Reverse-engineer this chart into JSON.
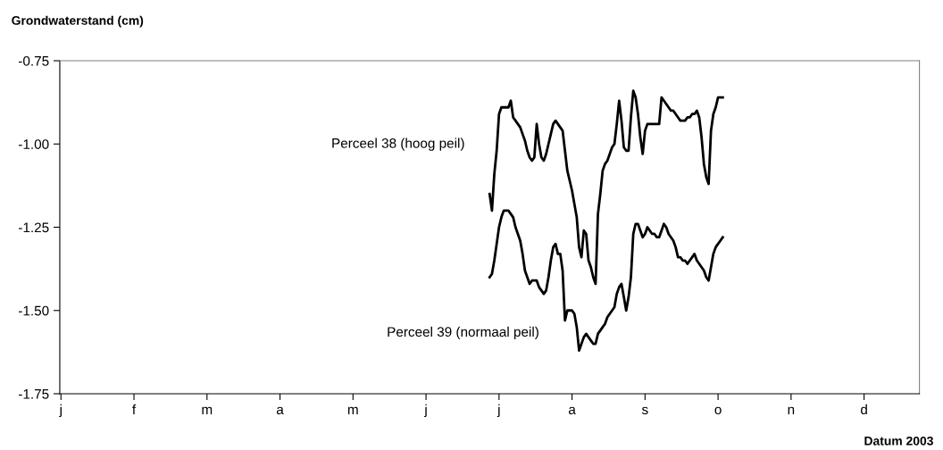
{
  "chart_data": {
    "type": "line",
    "ylabel": "Grondwaterstand (cm)",
    "xlabel": "Datum 2003",
    "categories": [
      "j",
      null,
      null,
      null,
      null,
      null,
      null,
      null,
      null,
      null,
      null,
      null,
      null,
      null,
      null,
      null,
      null,
      null,
      null,
      null,
      null,
      null,
      null,
      null,
      null,
      null,
      null,
      null,
      null,
      null,
      null,
      "f",
      null,
      null,
      null,
      null,
      null,
      null,
      null,
      null,
      null,
      null,
      null,
      null,
      null,
      null,
      null,
      null,
      null,
      null,
      null,
      null,
      null,
      null,
      null,
      null,
      null,
      null,
      null,
      null,
      null,
      null,
      "m",
      null,
      null,
      null,
      null,
      null,
      null,
      null,
      null,
      null,
      null,
      null,
      null,
      null,
      null,
      null,
      null,
      null,
      null,
      null,
      null,
      null,
      null,
      null,
      null,
      null,
      null,
      null,
      null,
      null,
      null,
      "a",
      null,
      null,
      null,
      null,
      null,
      null,
      null,
      null,
      null,
      null,
      null,
      null,
      null,
      null,
      null,
      null,
      null,
      null,
      null,
      null,
      null,
      null,
      null,
      null,
      null,
      null,
      null,
      null,
      null,
      null,
      "m",
      null,
      null,
      null,
      null,
      null,
      null,
      null,
      null,
      null,
      null,
      null,
      null,
      null,
      null,
      null,
      null,
      null,
      null,
      null,
      null,
      null,
      null,
      null,
      null,
      null,
      null,
      null,
      null,
      null,
      null,
      "j",
      null,
      null,
      null,
      null,
      null,
      null,
      null,
      null,
      null,
      null,
      null,
      null,
      null,
      null,
      null,
      null,
      null,
      null,
      null,
      null,
      null,
      null,
      null,
      null,
      null,
      null,
      null,
      null,
      null,
      null,
      "j",
      null,
      null,
      null,
      null,
      null,
      null,
      null,
      null,
      null,
      null,
      null,
      null,
      null,
      null,
      null,
      null,
      null,
      null,
      null,
      null,
      null,
      null,
      null,
      null,
      null,
      null,
      null,
      null,
      null,
      null,
      "a",
      null,
      null,
      null,
      null,
      null,
      null,
      null,
      null,
      null,
      null,
      null,
      null,
      null,
      null,
      null,
      null,
      null,
      null,
      null,
      null,
      null,
      null,
      null,
      null,
      null,
      null,
      null,
      null,
      null,
      null,
      "s",
      null,
      null,
      null,
      null,
      null,
      null,
      null,
      null,
      null,
      null,
      null,
      null,
      null,
      null,
      null,
      null,
      null,
      null,
      null,
      null,
      null,
      null,
      null,
      null,
      null,
      null,
      null,
      null,
      null,
      null,
      "o",
      null,
      null,
      null,
      null,
      null,
      null,
      null,
      null,
      null,
      null,
      null,
      null,
      null,
      null,
      null,
      null,
      null,
      null,
      null,
      null,
      null,
      null,
      null,
      null,
      null,
      null,
      null,
      null,
      null,
      null,
      "n",
      null,
      null,
      null,
      null,
      null,
      null,
      null,
      null,
      null,
      null,
      null,
      null,
      null,
      null,
      null,
      null,
      null,
      null,
      null,
      null,
      null,
      null,
      null,
      null,
      null,
      null,
      null,
      null,
      null,
      null,
      "d",
      null,
      null,
      null,
      null,
      null,
      null,
      null,
      null,
      null,
      null,
      null,
      null,
      null,
      null,
      null,
      null,
      null,
      null,
      null,
      null,
      null,
      null,
      null
    ],
    "ylim": [
      -1.75,
      -0.75
    ],
    "yticks": [
      {
        "value": -1.75,
        "label": "-1.75"
      },
      {
        "value": -1.5,
        "label": "-1.50"
      },
      {
        "value": -1.25,
        "label": "-1.25"
      },
      {
        "value": -1.0,
        "label": "-1.00"
      },
      {
        "value": -0.75,
        "label": "-0.75"
      }
    ],
    "grid": false,
    "legend": false,
    "marker": "none",
    "line_style": "solid",
    "series": [
      {
        "name": "Perceel 38 (hoog peil)",
        "color": "#000000",
        "values": [
          null,
          null,
          null,
          null,
          null,
          null,
          null,
          null,
          null,
          null,
          null,
          null,
          null,
          null,
          null,
          null,
          null,
          null,
          null,
          null,
          null,
          null,
          null,
          null,
          null,
          null,
          null,
          null,
          null,
          null,
          null,
          null,
          null,
          null,
          null,
          null,
          null,
          null,
          null,
          null,
          null,
          null,
          null,
          null,
          null,
          null,
          null,
          null,
          null,
          null,
          null,
          null,
          null,
          null,
          null,
          null,
          null,
          null,
          null,
          null,
          null,
          null,
          null,
          null,
          null,
          null,
          null,
          null,
          null,
          null,
          null,
          null,
          null,
          null,
          null,
          null,
          null,
          null,
          null,
          null,
          null,
          null,
          null,
          null,
          null,
          null,
          null,
          null,
          null,
          null,
          null,
          null,
          null,
          null,
          null,
          null,
          null,
          null,
          null,
          null,
          null,
          null,
          null,
          null,
          null,
          null,
          null,
          null,
          null,
          null,
          null,
          null,
          null,
          null,
          null,
          null,
          null,
          null,
          null,
          null,
          null,
          null,
          null,
          null,
          null,
          null,
          null,
          null,
          null,
          null,
          null,
          null,
          null,
          null,
          null,
          null,
          null,
          null,
          null,
          null,
          null,
          null,
          null,
          null,
          null,
          null,
          null,
          null,
          null,
          null,
          null,
          null,
          null,
          null,
          null,
          null,
          null,
          null,
          null,
          null,
          null,
          null,
          null,
          null,
          null,
          null,
          null,
          null,
          null,
          null,
          null,
          null,
          null,
          null,
          null,
          null,
          null,
          null,
          null,
          null,
          null,
          null,
          -1.15,
          -1.2,
          -1.09,
          -1.02,
          -0.91,
          -0.89,
          -0.89,
          -0.89,
          -0.89,
          -0.87,
          -0.92,
          -0.93,
          -0.94,
          -0.95,
          -0.97,
          -0.99,
          -1.02,
          -1.04,
          -1.05,
          -1.04,
          -0.94,
          -1.0,
          -1.04,
          -1.05,
          -1.03,
          -1.0,
          -0.97,
          -0.94,
          -0.93,
          -0.94,
          -0.95,
          -0.96,
          -1.02,
          -1.08,
          -1.11,
          -1.14,
          -1.18,
          -1.22,
          -1.31,
          -1.34,
          -1.26,
          -1.27,
          -1.35,
          -1.37,
          -1.4,
          -1.42,
          -1.21,
          -1.15,
          -1.08,
          -1.06,
          -1.05,
          -1.03,
          -1.01,
          -1.0,
          -0.94,
          -0.87,
          -0.93,
          -1.01,
          -1.02,
          -1.02,
          -0.92,
          -0.84,
          -0.86,
          -0.91,
          -0.98,
          -1.03,
          -0.96,
          -0.94,
          -0.94,
          -0.94,
          -0.94,
          -0.94,
          -0.94,
          -0.86,
          -0.87,
          -0.88,
          -0.89,
          -0.9,
          -0.9,
          -0.91,
          -0.92,
          -0.93,
          -0.93,
          -0.93,
          -0.92,
          -0.92,
          -0.91,
          -0.91,
          -0.9,
          -0.92,
          -0.98,
          -1.06,
          -1.1,
          -1.12,
          -0.96,
          -0.91,
          -0.89,
          -0.86,
          -0.86,
          -0.86,
          null,
          null,
          null,
          null,
          null,
          null,
          null,
          null,
          null,
          null,
          null,
          null,
          null,
          null,
          null,
          null,
          null,
          null,
          null,
          null,
          null,
          null,
          null,
          null,
          null,
          null,
          null,
          null,
          null,
          null,
          null,
          null,
          null,
          null,
          null,
          null,
          null,
          null,
          null,
          null,
          null,
          null,
          null,
          null,
          null,
          null,
          null,
          null,
          null,
          null,
          null,
          null,
          null,
          null,
          null,
          null,
          null,
          null,
          null,
          null,
          null,
          null,
          null,
          null,
          null,
          null,
          null,
          null,
          null,
          null,
          null,
          null,
          null,
          null,
          null,
          null,
          null,
          null,
          null,
          null,
          null,
          null,
          null
        ]
      },
      {
        "name": "Perceel 39 (normaal peil)",
        "color": "#000000",
        "values": [
          null,
          null,
          null,
          null,
          null,
          null,
          null,
          null,
          null,
          null,
          null,
          null,
          null,
          null,
          null,
          null,
          null,
          null,
          null,
          null,
          null,
          null,
          null,
          null,
          null,
          null,
          null,
          null,
          null,
          null,
          null,
          null,
          null,
          null,
          null,
          null,
          null,
          null,
          null,
          null,
          null,
          null,
          null,
          null,
          null,
          null,
          null,
          null,
          null,
          null,
          null,
          null,
          null,
          null,
          null,
          null,
          null,
          null,
          null,
          null,
          null,
          null,
          null,
          null,
          null,
          null,
          null,
          null,
          null,
          null,
          null,
          null,
          null,
          null,
          null,
          null,
          null,
          null,
          null,
          null,
          null,
          null,
          null,
          null,
          null,
          null,
          null,
          null,
          null,
          null,
          null,
          null,
          null,
          null,
          null,
          null,
          null,
          null,
          null,
          null,
          null,
          null,
          null,
          null,
          null,
          null,
          null,
          null,
          null,
          null,
          null,
          null,
          null,
          null,
          null,
          null,
          null,
          null,
          null,
          null,
          null,
          null,
          null,
          null,
          null,
          null,
          null,
          null,
          null,
          null,
          null,
          null,
          null,
          null,
          null,
          null,
          null,
          null,
          null,
          null,
          null,
          null,
          null,
          null,
          null,
          null,
          null,
          null,
          null,
          null,
          null,
          null,
          null,
          null,
          null,
          null,
          null,
          null,
          null,
          null,
          null,
          null,
          null,
          null,
          null,
          null,
          null,
          null,
          null,
          null,
          null,
          null,
          null,
          null,
          null,
          null,
          null,
          null,
          null,
          null,
          null,
          null,
          -1.4,
          -1.39,
          -1.35,
          -1.3,
          -1.25,
          -1.22,
          -1.2,
          -1.2,
          -1.2,
          -1.21,
          -1.22,
          -1.25,
          -1.27,
          -1.29,
          -1.33,
          -1.38,
          -1.4,
          -1.42,
          -1.41,
          -1.41,
          -1.41,
          -1.43,
          -1.44,
          -1.45,
          -1.44,
          -1.4,
          -1.35,
          -1.31,
          -1.3,
          -1.33,
          -1.33,
          -1.38,
          -1.53,
          -1.5,
          -1.5,
          -1.5,
          -1.51,
          -1.55,
          -1.62,
          -1.6,
          -1.58,
          -1.57,
          -1.58,
          -1.59,
          -1.6,
          -1.6,
          -1.57,
          -1.56,
          -1.55,
          -1.54,
          -1.52,
          -1.51,
          -1.5,
          -1.49,
          -1.45,
          -1.43,
          -1.42,
          -1.46,
          -1.5,
          -1.46,
          -1.4,
          -1.27,
          -1.24,
          -1.24,
          -1.26,
          -1.28,
          -1.27,
          -1.25,
          -1.26,
          -1.27,
          -1.27,
          -1.28,
          -1.28,
          -1.26,
          -1.24,
          -1.25,
          -1.27,
          -1.28,
          -1.29,
          -1.31,
          -1.34,
          -1.34,
          -1.35,
          -1.35,
          -1.36,
          -1.35,
          -1.34,
          -1.33,
          -1.35,
          -1.36,
          -1.37,
          -1.38,
          -1.4,
          -1.41,
          -1.37,
          -1.33,
          -1.31,
          -1.3,
          -1.29,
          -1.28,
          null,
          null,
          null,
          null,
          null,
          null,
          null,
          null,
          null,
          null,
          null,
          null,
          null,
          null,
          null,
          null,
          null,
          null,
          null,
          null,
          null,
          null,
          null,
          null,
          null,
          null,
          null,
          null,
          null,
          null,
          null,
          null,
          null,
          null,
          null,
          null,
          null,
          null,
          null,
          null,
          null,
          null,
          null,
          null,
          null,
          null,
          null,
          null,
          null,
          null,
          null,
          null,
          null,
          null,
          null,
          null,
          null,
          null,
          null,
          null,
          null,
          null,
          null,
          null,
          null,
          null,
          null,
          null,
          null,
          null,
          null,
          null,
          null,
          null,
          null,
          null,
          null,
          null,
          null,
          null,
          null,
          null,
          null
        ]
      }
    ]
  }
}
